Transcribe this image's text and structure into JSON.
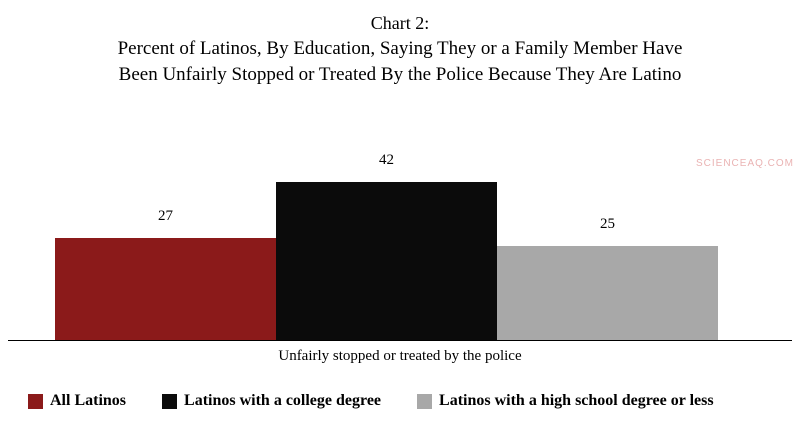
{
  "title": {
    "line1": "Chart 2:",
    "line2": "Percent of Latinos, By Education,  Saying They or a Family Member Have",
    "line3": "Been Unfairly Stopped or Treated By the Police Because They Are Latino"
  },
  "watermark": "SCIENCEAQ.COM",
  "chart_data": {
    "type": "bar",
    "title": "Chart 2: Percent of Latinos, By Education, Saying They or a Family Member Have Been Unfairly Stopped or Treated By the Police Because They Are Latino",
    "categories": [
      "All Latinos",
      "Latinos with a college degree",
      "Latinos with a high school degree or less"
    ],
    "values": [
      27,
      42,
      25
    ],
    "colors": [
      "#8b1a1a",
      "#0b0b0b",
      "#a8a8a8"
    ],
    "xlabel": "Unfairly stopped or treated by the police",
    "ylabel": "",
    "ylim": [
      0,
      50
    ],
    "grid": false,
    "legend_position": "bottom",
    "data_labels": true
  }
}
